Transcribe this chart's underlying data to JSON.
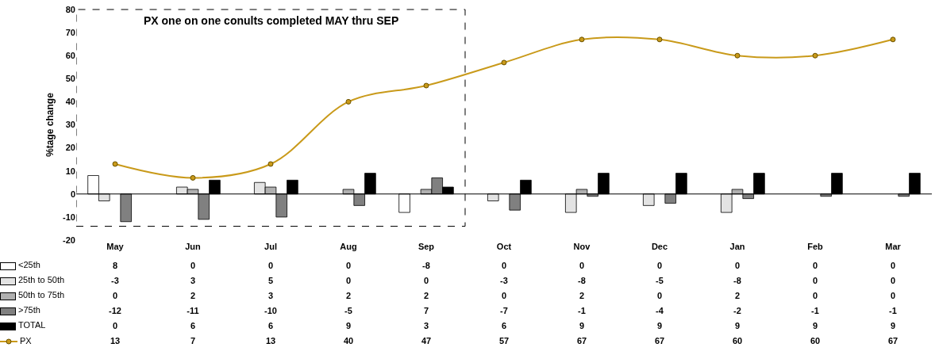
{
  "chart_data": {
    "type": "bar",
    "ylabel": "%tage change",
    "categories": [
      "May",
      "Jun",
      "Jul",
      "Aug",
      "Sep",
      "Oct",
      "Nov",
      "Dec",
      "Jan",
      "Feb",
      "Mar"
    ],
    "series": [
      {
        "name": "<25th",
        "color": "#ffffff",
        "values": [
          8,
          0,
          0,
          0,
          -8,
          0,
          0,
          0,
          0,
          0,
          0
        ]
      },
      {
        "name": "25th to 50th",
        "color": "#e3e3e3",
        "values": [
          -3,
          3,
          5,
          0,
          0,
          -3,
          -8,
          -5,
          -8,
          0,
          0
        ]
      },
      {
        "name": "50th to 75th",
        "color": "#b0b0b0",
        "values": [
          0,
          2,
          3,
          2,
          2,
          0,
          2,
          0,
          2,
          0,
          0
        ]
      },
      {
        "name": ">75th",
        "color": "#808080",
        "values": [
          -12,
          -11,
          -10,
          -5,
          7,
          -7,
          -1,
          -4,
          -2,
          -1,
          -1
        ]
      },
      {
        "name": "TOTAL",
        "color": "#000000",
        "values": [
          0,
          6,
          6,
          9,
          3,
          6,
          9,
          9,
          9,
          9,
          9
        ]
      },
      {
        "name": "PX",
        "type": "line",
        "color": "#c99a1a",
        "marker": "circle",
        "line_style": "solid",
        "values": [
          13,
          7,
          13,
          40,
          47,
          57,
          67,
          67,
          60,
          60,
          67
        ]
      }
    ],
    "ylim": [
      -20,
      80
    ],
    "yticks": [
      -20,
      -10,
      0,
      10,
      20,
      30,
      40,
      50,
      60,
      70,
      80
    ],
    "data_labels": true,
    "legend": "bottom left",
    "ref_lines": [
      {
        "axis": "y",
        "value": 0,
        "color": "#000000"
      }
    ],
    "annotations": [
      "PX one on one conults completed MAY thru SEP"
    ]
  }
}
